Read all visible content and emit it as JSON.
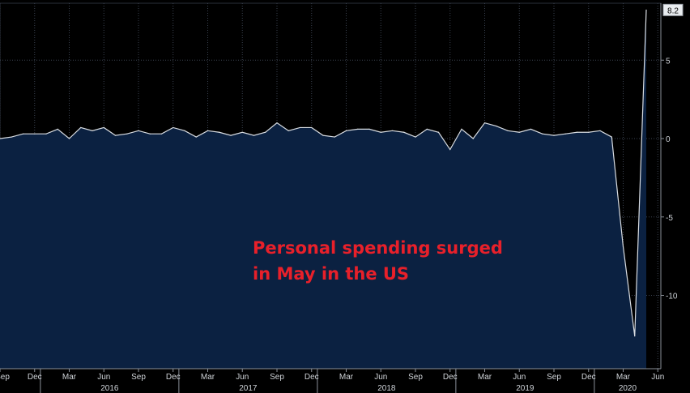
{
  "chart_data": {
    "type": "area",
    "title": "",
    "xlabel": "",
    "ylabel": "",
    "ylim": [
      -14.5,
      8.2
    ],
    "y_ticks": [
      5,
      0,
      -5,
      -10
    ],
    "last_value_label": "8.2",
    "x_month_labels": [
      "Sep",
      "Dec",
      "Mar",
      "Jun",
      "Sep",
      "Dec",
      "Mar",
      "Jun",
      "Sep",
      "Dec",
      "Mar",
      "Jun",
      "Sep",
      "Dec",
      "Mar",
      "Jun",
      "Sep",
      "Dec",
      "Mar",
      "Jun"
    ],
    "x_year_labels": [
      "2016",
      "2017",
      "2018",
      "2019",
      "2020"
    ],
    "grid": true,
    "colors": {
      "line": "#d9dde2",
      "area": "#0b2141",
      "grid": "#3a4250",
      "annotation": "#e8202a",
      "background": "#000000"
    },
    "series": [
      {
        "x": [
          "2015-09",
          "2015-10",
          "2015-11",
          "2015-12",
          "2016-01",
          "2016-02",
          "2016-03",
          "2016-04",
          "2016-05",
          "2016-06",
          "2016-07",
          "2016-08",
          "2016-09",
          "2016-10",
          "2016-11",
          "2016-12",
          "2017-01",
          "2017-02",
          "2017-03",
          "2017-04",
          "2017-05",
          "2017-06",
          "2017-07",
          "2017-08",
          "2017-09",
          "2017-10",
          "2017-11",
          "2017-12",
          "2018-01",
          "2018-02",
          "2018-03",
          "2018-04",
          "2018-05",
          "2018-06",
          "2018-07",
          "2018-08",
          "2018-09",
          "2018-10",
          "2018-11",
          "2018-12",
          "2019-01",
          "2019-02",
          "2019-03",
          "2019-04",
          "2019-05",
          "2019-06",
          "2019-07",
          "2019-08",
          "2019-09",
          "2019-10",
          "2019-11",
          "2019-12",
          "2020-01",
          "2020-02",
          "2020-03",
          "2020-04",
          "2020-05"
        ],
        "values": [
          0.0,
          0.1,
          0.3,
          0.3,
          0.3,
          0.6,
          0.0,
          0.7,
          0.5,
          0.7,
          0.2,
          0.3,
          0.5,
          0.3,
          0.3,
          0.7,
          0.5,
          0.1,
          0.5,
          0.4,
          0.2,
          0.4,
          0.2,
          0.4,
          1.0,
          0.5,
          0.7,
          0.7,
          0.2,
          0.1,
          0.5,
          0.6,
          0.6,
          0.4,
          0.5,
          0.4,
          0.1,
          0.6,
          0.4,
          -0.7,
          0.6,
          0.0,
          1.0,
          0.8,
          0.5,
          0.4,
          0.6,
          0.3,
          0.2,
          0.3,
          0.4,
          0.4,
          0.5,
          0.1,
          -6.9,
          -12.6,
          8.2
        ]
      }
    ]
  },
  "annotation": {
    "line1": "Personal spending surged",
    "line2": "in May in the US"
  }
}
